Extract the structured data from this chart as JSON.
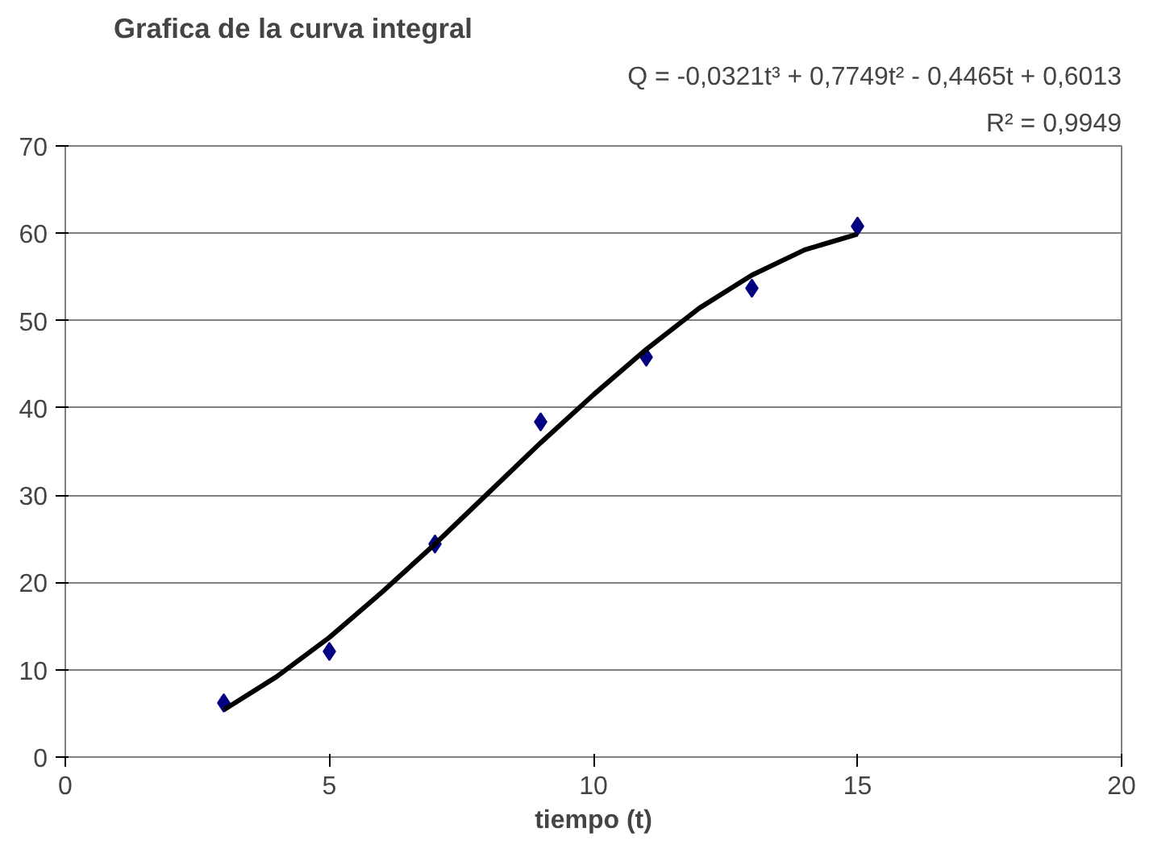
{
  "chart_data": {
    "type": "scatter",
    "title": "Grafica de la curva integral",
    "xlabel": "tiempo (t)",
    "annotations": [
      "Q = -0,0321t³ + 0,7749t² - 0,4465t + 0,6013",
      "R² = 0,9949"
    ],
    "series": [
      {
        "color": "#000080",
        "marker": "diamond",
        "x": [
          3,
          5,
          7,
          9,
          11,
          13,
          15
        ],
        "values": [
          6.2,
          12.1,
          24.4,
          38.4,
          45.8,
          53.7,
          60.8
        ]
      },
      {
        "type": "line",
        "color": "#000000",
        "x": [
          3,
          4,
          5,
          6,
          7,
          8,
          9,
          10,
          11,
          12,
          13,
          14,
          15
        ],
        "values": [
          5.4,
          9.2,
          13.7,
          18.9,
          24.4,
          30.2,
          36.0,
          41.5,
          46.7,
          51.4,
          55.2,
          58.1,
          59.9
        ]
      }
    ],
    "xlim": [
      0,
      20
    ],
    "ylim": [
      0,
      70
    ],
    "xticks": [
      0,
      5,
      10,
      15,
      20
    ],
    "yticks": [
      0,
      10,
      20,
      30,
      40,
      50,
      60,
      70
    ],
    "grid": "y"
  }
}
